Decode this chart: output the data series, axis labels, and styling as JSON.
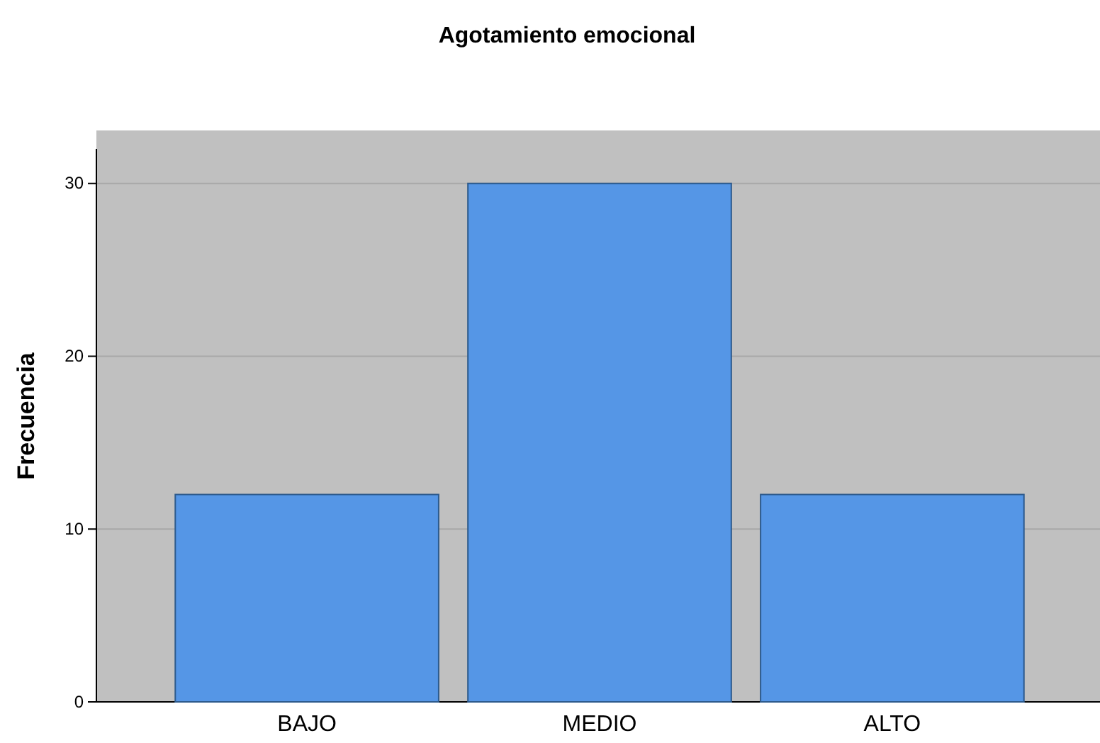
{
  "chart_data": {
    "type": "bar",
    "title": "Agotamiento emocional",
    "ylabel": "Frecuencia",
    "categories": [
      "BAJO",
      "MEDIO",
      "ALTO"
    ],
    "values": [
      12,
      30,
      12
    ],
    "color": "#5596e6",
    "ylim": [
      0,
      32
    ],
    "yticks": [
      0,
      10,
      20,
      30
    ],
    "grid": "y"
  }
}
